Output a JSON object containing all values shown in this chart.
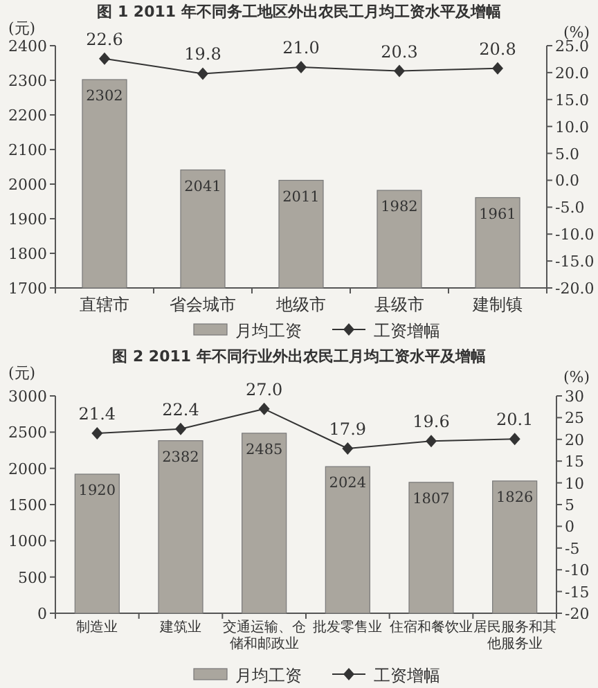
{
  "chart_data": [
    {
      "type": "bar",
      "title": "图 1  2011 年不同务工地区外出农民工月均工资水平及增幅",
      "ylabel": "(元)",
      "y2label": "(%)",
      "categories": [
        "直辖市",
        "省会城市",
        "地级市",
        "县级市",
        "建制镇"
      ],
      "series": [
        {
          "name": "月均工资",
          "color": "#aaa69e",
          "values": [
            2302,
            2041,
            2011,
            1982,
            1961
          ]
        },
        {
          "name": "工资增幅",
          "type": "line",
          "axis": "y2",
          "color": "#333333",
          "marker": "diamond",
          "values": [
            22.6,
            19.8,
            21.0,
            20.3,
            20.8
          ],
          "value_labels": [
            "22.6",
            "19.8",
            "21.0",
            "20.3",
            "20.8"
          ]
        }
      ],
      "ylim": [
        1700,
        2400
      ],
      "yticks": [
        1700,
        1800,
        1900,
        2000,
        2100,
        2200,
        2300,
        2400
      ],
      "y2lim": [
        -20,
        25
      ],
      "y2ticks": [
        {
          "value": -20,
          "label": "-20.0"
        },
        {
          "value": -15,
          "label": "-15.0"
        },
        {
          "value": -10,
          "label": "-10.0"
        },
        {
          "value": -5,
          "label": "-5.0"
        },
        {
          "value": 0,
          "label": "0.0"
        },
        {
          "value": 5,
          "label": "5.0"
        },
        {
          "value": 10,
          "label": "10.0"
        },
        {
          "value": 15,
          "label": "15.0"
        },
        {
          "value": 20,
          "label": "20.0"
        },
        {
          "value": 25,
          "label": "25.0"
        }
      ],
      "data_labels": true,
      "legend": "bottom"
    },
    {
      "type": "bar",
      "title": "图 2  2011 年不同行业外出农民工月均工资水平及增幅",
      "ylabel": "(元)",
      "y2label": "(%)",
      "categories": [
        "制造业",
        "建筑业",
        "交通运输、仓储和邮政业",
        "批发零售业",
        "住宿和餐饮业",
        "居民服务和其他服务业"
      ],
      "series": [
        {
          "name": "月均工资",
          "color": "#aaa69e",
          "values": [
            1920,
            2382,
            2485,
            2024,
            1807,
            1826
          ]
        },
        {
          "name": "工资增幅",
          "type": "line",
          "axis": "y2",
          "color": "#333333",
          "marker": "diamond",
          "values": [
            21.4,
            22.4,
            27.0,
            17.9,
            19.6,
            20.1
          ],
          "value_labels": [
            "21.4",
            "22.4",
            "27.0",
            "17.9",
            "19.6",
            "20.1"
          ]
        }
      ],
      "ylim": [
        0,
        3000
      ],
      "yticks": [
        0,
        500,
        1000,
        1500,
        2000,
        2500,
        3000
      ],
      "y2lim": [
        -20,
        30
      ],
      "y2ticks": [
        -20,
        -15,
        -10,
        -5,
        0,
        5,
        10,
        15,
        20,
        25,
        30
      ],
      "data_labels": true,
      "legend": "bottom"
    }
  ]
}
